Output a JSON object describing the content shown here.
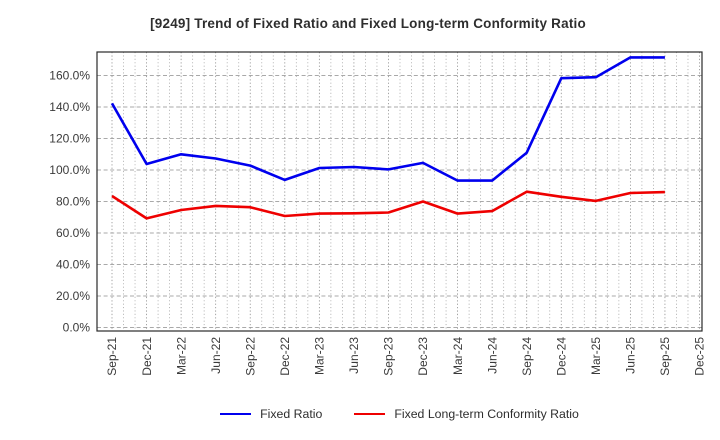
{
  "title": "[9249]  Trend of Fixed Ratio and Fixed Long-term Conformity Ratio",
  "colors": {
    "fixed_ratio_line": "#0000ee",
    "fixed_long_term_line": "#ee0000",
    "grid": "#a6a6a6",
    "axis_frame": "#2a2a2a",
    "text": "#3a3a3a"
  },
  "chart_data": {
    "type": "line",
    "title": "[9249]  Trend of Fixed Ratio and Fixed Long-term Conformity Ratio",
    "categories": [
      "Sep-21",
      "Dec-21",
      "Mar-22",
      "Jun-22",
      "Sep-22",
      "Dec-22",
      "Mar-23",
      "Jun-23",
      "Sep-23",
      "Dec-23",
      "Mar-24",
      "Jun-24",
      "Sep-24",
      "Dec-24",
      "Mar-25",
      "Jun-25",
      "Sep-25",
      "Dec-25"
    ],
    "series": [
      {
        "name": "Fixed Ratio",
        "color": "#0000ee",
        "values": [
          142.3,
          103.8,
          110.0,
          107.3,
          102.8,
          93.7,
          101.3,
          101.9,
          100.4,
          104.5,
          93.3,
          93.3,
          111.0,
          158.3,
          158.9,
          171.5,
          171.5,
          null
        ]
      },
      {
        "name": "Fixed Long-term Conformity Ratio",
        "color": "#ee0000",
        "values": [
          83.5,
          69.3,
          74.6,
          77.2,
          76.4,
          70.8,
          72.3,
          72.5,
          73.0,
          80.0,
          72.3,
          73.9,
          86.2,
          83.0,
          80.4,
          85.4,
          86.0,
          null
        ]
      }
    ],
    "xlabel": "",
    "ylabel": "",
    "ylim": [
      -2,
      175
    ],
    "yticks": [
      0,
      20,
      40,
      60,
      80,
      100,
      120,
      140,
      160
    ],
    "ytick_suffix": ".0%",
    "grid": true,
    "x_minor_divisions": 3,
    "legend_position": "bottom-center"
  },
  "legend": {
    "items": [
      {
        "label": "Fixed Ratio"
      },
      {
        "label": "Fixed Long-term Conformity Ratio"
      }
    ]
  }
}
